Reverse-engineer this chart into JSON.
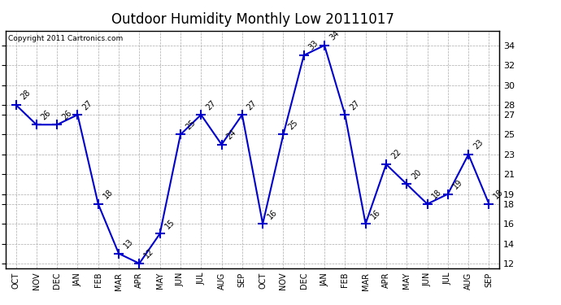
{
  "title": "Outdoor Humidity Monthly Low 20111017",
  "copyright": "Copyright 2011 Cartronics.com",
  "x_labels": [
    "OCT",
    "NOV",
    "DEC",
    "JAN",
    "FEB",
    "MAR",
    "APR",
    "MAY",
    "JUN",
    "JUL",
    "AUG",
    "SEP",
    "OCT",
    "NOV",
    "DEC",
    "JAN",
    "FEB",
    "MAR",
    "APR",
    "MAY",
    "JUN",
    "JUL",
    "AUG",
    "SEP"
  ],
  "y_values": [
    28,
    26,
    26,
    27,
    18,
    13,
    12,
    15,
    25,
    27,
    24,
    27,
    16,
    25,
    33,
    34,
    27,
    16,
    22,
    20,
    18,
    19,
    23,
    18
  ],
  "ylim": [
    11.5,
    35.5
  ],
  "yticks_right": [
    12,
    14,
    16,
    18,
    19,
    21,
    23,
    25,
    27,
    28,
    30,
    32,
    34
  ],
  "yticks_grid": [
    12,
    14,
    16,
    18,
    19,
    21,
    23,
    25,
    27,
    28,
    30,
    32,
    34
  ],
  "line_color": "#0000cc",
  "marker": "+",
  "bg_color": "#ffffff",
  "grid_color": "#aaaaaa",
  "title_fontsize": 12,
  "xtick_fontsize": 7,
  "ytick_fontsize": 8,
  "annot_fontsize": 7,
  "copyright_fontsize": 6.5
}
